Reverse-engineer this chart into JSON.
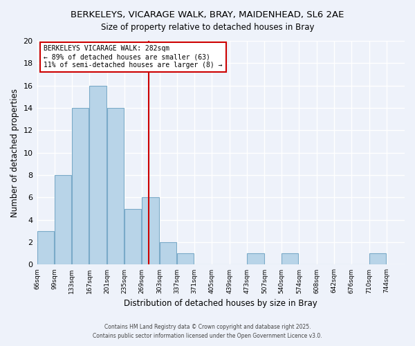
{
  "title": "BERKELEYS, VICARAGE WALK, BRAY, MAIDENHEAD, SL6 2AE",
  "subtitle": "Size of property relative to detached houses in Bray",
  "xlabel": "Distribution of detached houses by size in Bray",
  "ylabel": "Number of detached properties",
  "bar_color": "#b8d4e8",
  "bar_edge_color": "#7aaac8",
  "background_color": "#eef2fa",
  "grid_color": "#ffffff",
  "bin_edges": [
    66,
    99,
    133,
    167,
    201,
    235,
    269,
    303,
    337,
    371,
    405,
    439,
    473,
    507,
    540,
    574,
    608,
    642,
    676,
    710,
    744
  ],
  "bin_labels": [
    "66sqm",
    "99sqm",
    "133sqm",
    "167sqm",
    "201sqm",
    "235sqm",
    "269sqm",
    "303sqm",
    "337sqm",
    "371sqm",
    "405sqm",
    "439sqm",
    "473sqm",
    "507sqm",
    "540sqm",
    "574sqm",
    "608sqm",
    "642sqm",
    "676sqm",
    "710sqm",
    "744sqm"
  ],
  "counts": [
    3,
    8,
    14,
    16,
    14,
    5,
    6,
    2,
    1,
    0,
    0,
    0,
    1,
    0,
    1,
    0,
    0,
    0,
    0,
    1
  ],
  "vline_x": 282,
  "vline_color": "#cc0000",
  "annotation_title": "BERKELEYS VICARAGE WALK: 282sqm",
  "annotation_line1": "← 89% of detached houses are smaller (63)",
  "annotation_line2": "11% of semi-detached houses are larger (8) →",
  "annotation_box_color": "#ffffff",
  "annotation_box_edge": "#cc0000",
  "ylim": [
    0,
    20
  ],
  "yticks": [
    0,
    2,
    4,
    6,
    8,
    10,
    12,
    14,
    16,
    18,
    20
  ],
  "footer1": "Contains HM Land Registry data © Crown copyright and database right 2025.",
  "footer2": "Contains public sector information licensed under the Open Government Licence v3.0."
}
